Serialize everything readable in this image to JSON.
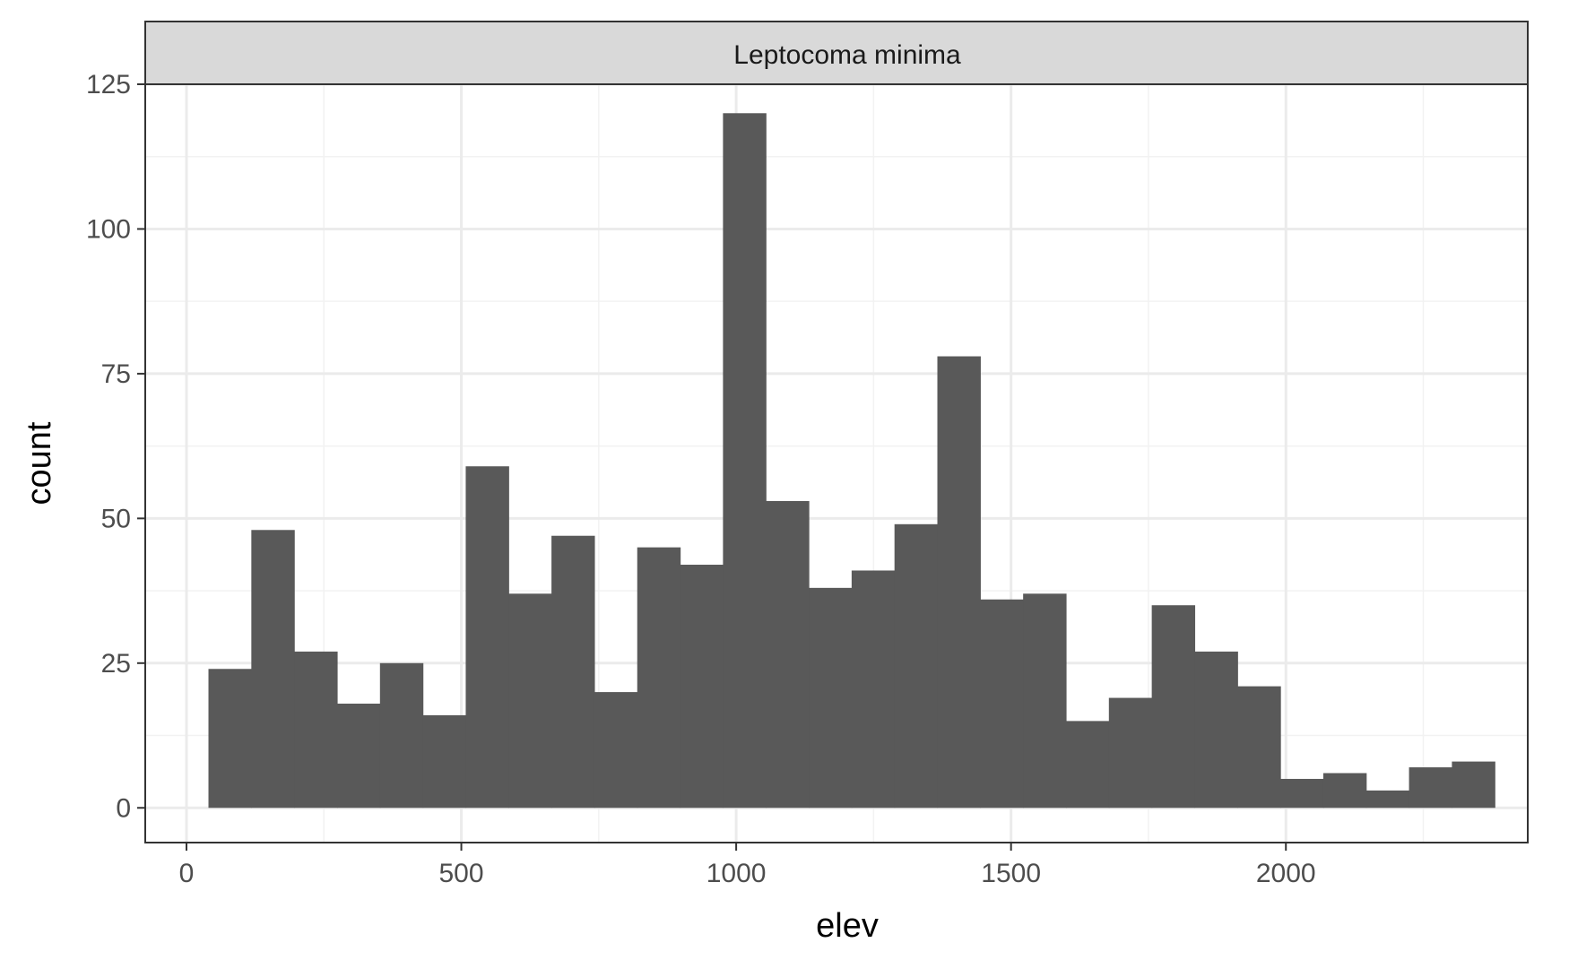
{
  "chart_data": {
    "type": "bar",
    "title": "",
    "facet_label": "Leptocoma minima",
    "xlabel": "elev",
    "ylabel": "count",
    "xlim": [
      -75,
      2440
    ],
    "ylim": [
      -6,
      125
    ],
    "x_ticks": [
      0,
      500,
      1000,
      1500,
      2000
    ],
    "y_ticks": [
      0,
      25,
      50,
      75,
      100,
      125
    ],
    "x_tick_labels": [
      "0",
      "500",
      "1000",
      "1500",
      "2000"
    ],
    "y_tick_labels": [
      "0",
      "25",
      "50",
      "75",
      "100",
      "125"
    ],
    "bin_width": 78,
    "bin_starts": [
      40,
      118,
      196,
      274,
      352,
      430,
      508,
      586,
      664,
      742,
      820,
      898,
      976,
      1054,
      1132,
      1210,
      1288,
      1366,
      1444,
      1522,
      1600,
      1678,
      1756,
      1834,
      1912,
      1990,
      2068,
      2146,
      2224,
      2302
    ],
    "values": [
      24,
      48,
      27,
      18,
      25,
      16,
      59,
      37,
      47,
      20,
      45,
      42,
      120,
      53,
      38,
      41,
      49,
      78,
      36,
      37,
      15,
      19,
      35,
      27,
      21,
      5,
      6,
      3,
      7,
      8
    ],
    "bar_color": "#595959",
    "grid": true,
    "legend": "none"
  }
}
